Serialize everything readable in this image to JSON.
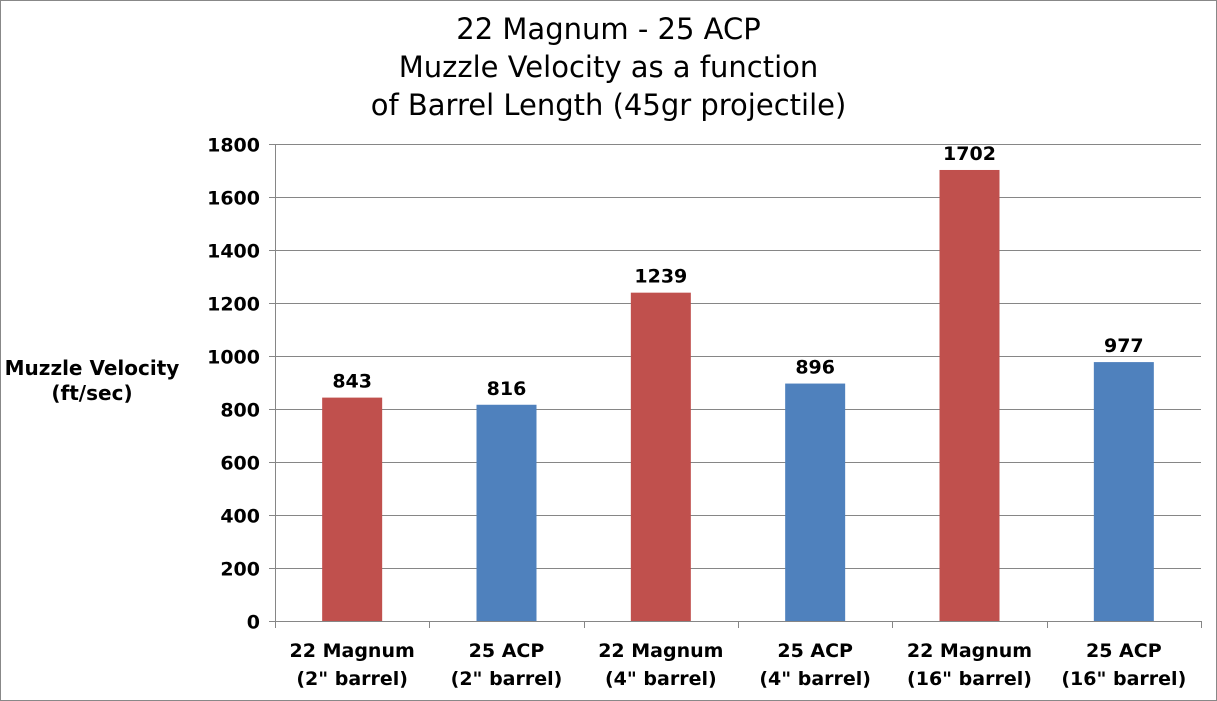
{
  "chart_data": {
    "type": "bar",
    "title_lines": [
      "22 Magnum - 25 ACP",
      "Muzzle Velocity as a function",
      "of Barrel Length (45gr projectile)"
    ],
    "ylabel_lines": [
      "Muzzle Velocity",
      "(ft/sec)"
    ],
    "xlabel": "",
    "ylim": [
      0,
      1800
    ],
    "yticks": [
      0,
      200,
      400,
      600,
      800,
      1000,
      1200,
      1400,
      1600,
      1800
    ],
    "grid": true,
    "legend": "none",
    "categories": [
      [
        "22 Magnum",
        "(2\" barrel)"
      ],
      [
        "25 ACP",
        "(2\" barrel)"
      ],
      [
        "22 Magnum",
        "(4\" barrel)"
      ],
      [
        "25 ACP",
        "(4\" barrel)"
      ],
      [
        "22 Magnum",
        "(16\" barrel)"
      ],
      [
        "25 ACP",
        "(16\" barrel)"
      ]
    ],
    "values": [
      843,
      816,
      1239,
      896,
      1702,
      977
    ],
    "bar_colors": [
      "#C0504D",
      "#4F81BD",
      "#C0504D",
      "#4F81BD",
      "#C0504D",
      "#4F81BD"
    ],
    "data_labels": [
      "843",
      "816",
      "1239",
      "896",
      "1702",
      "977"
    ]
  }
}
